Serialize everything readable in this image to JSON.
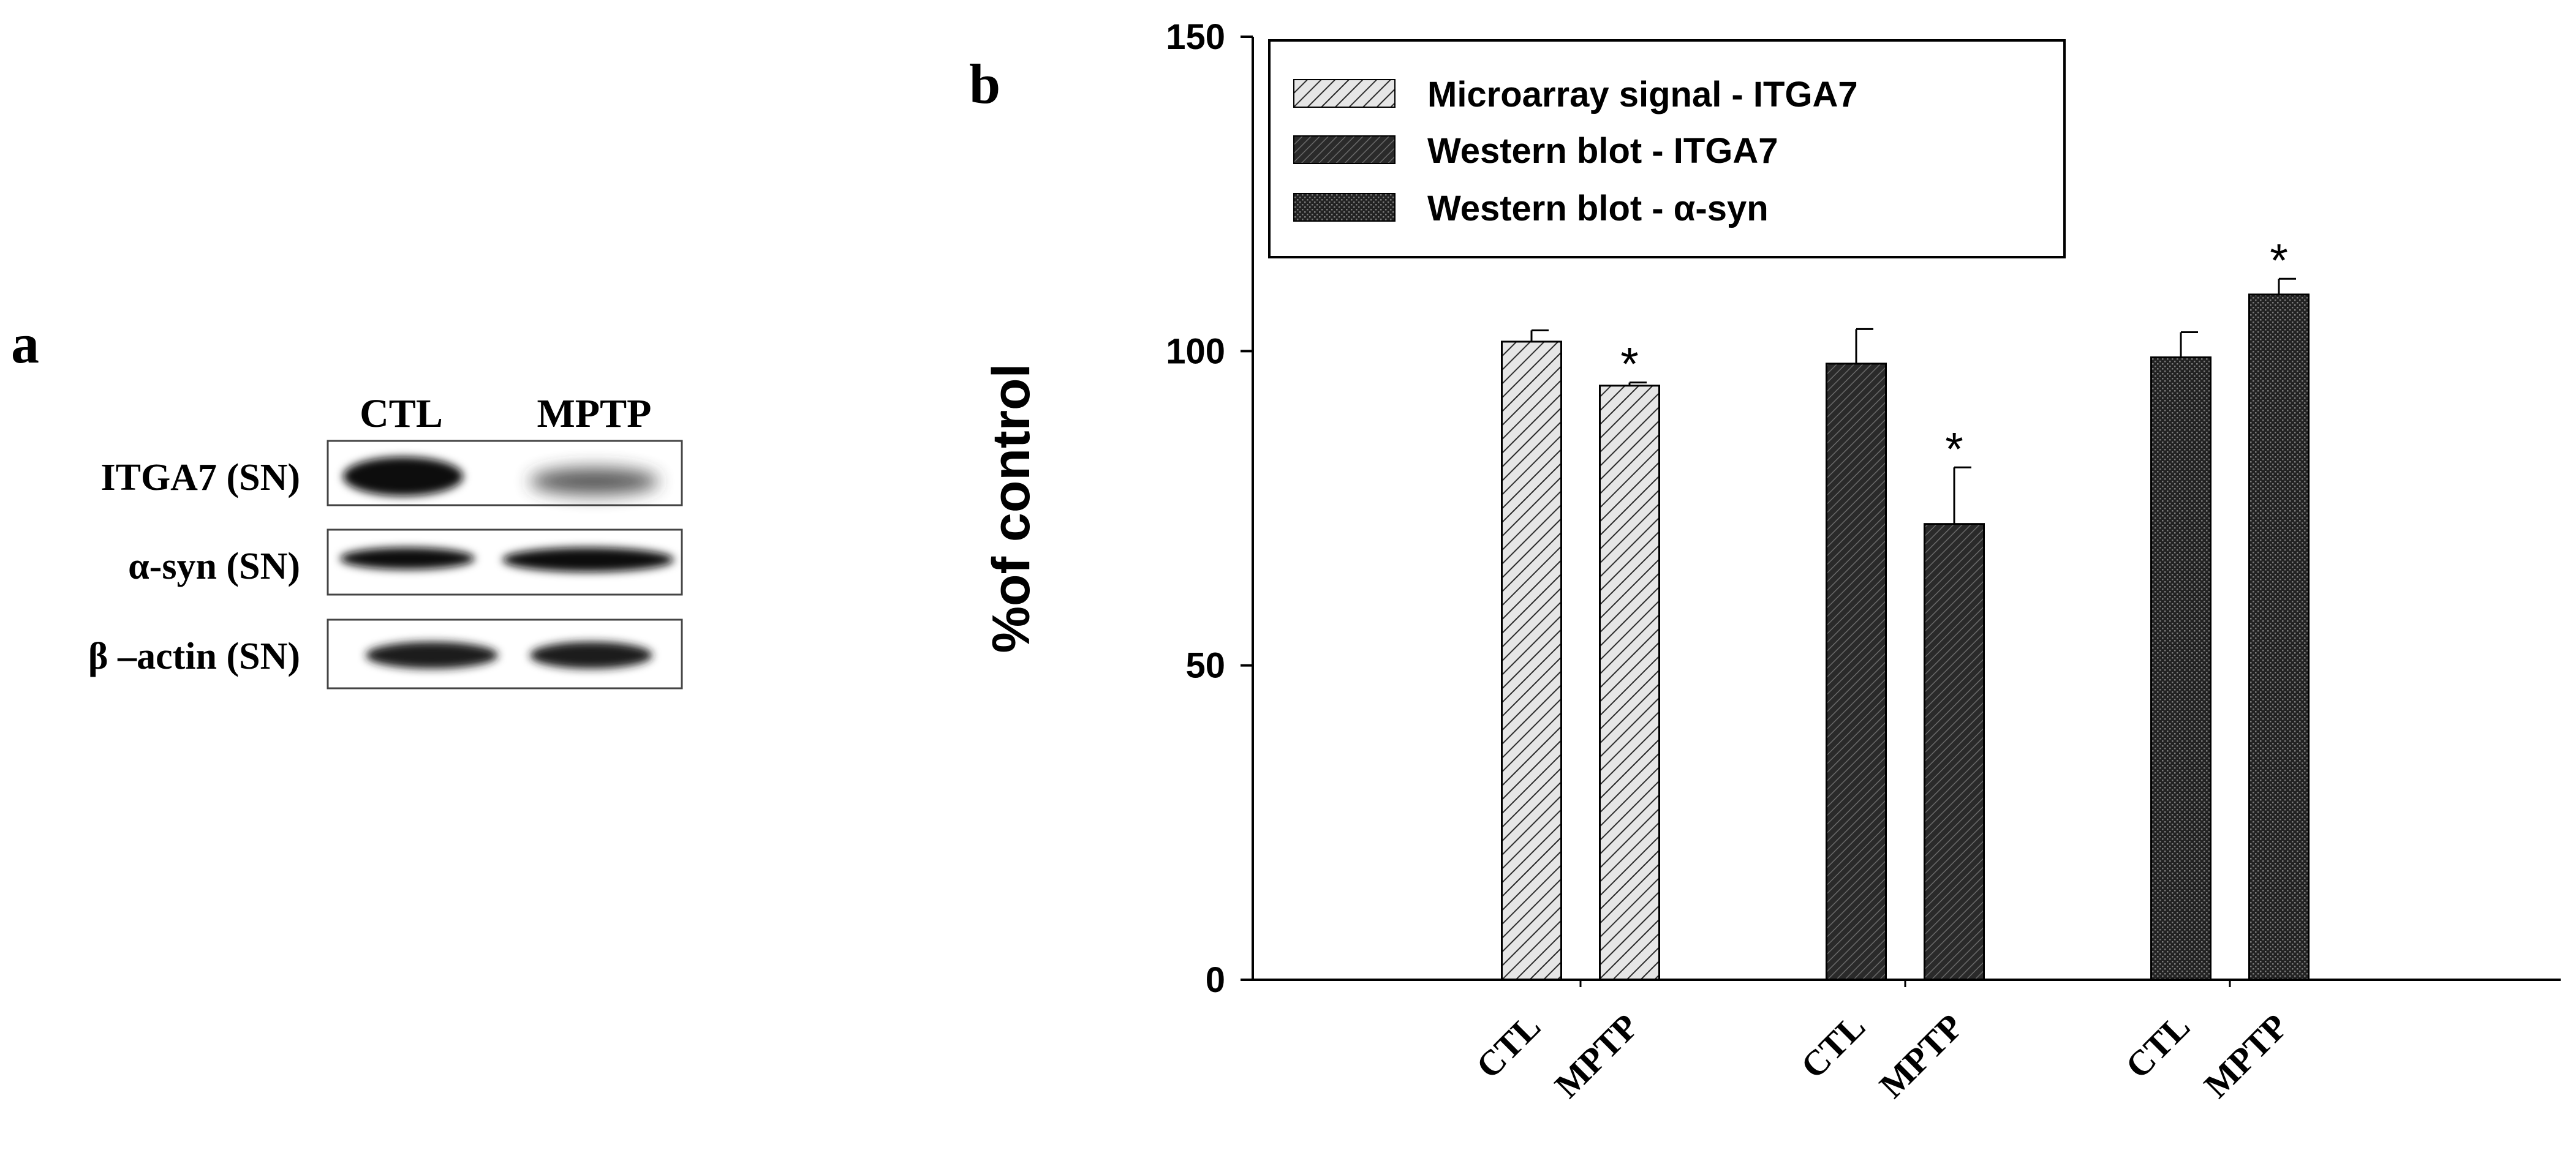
{
  "panel_a": {
    "letter": "a",
    "lanes": [
      "CTL",
      "MPTP"
    ],
    "rows": [
      {
        "label": "ITGA7 (SN)",
        "intensity": [
          0.95,
          0.55
        ]
      },
      {
        "label": "α-syn (SN)",
        "intensity": [
          0.85,
          0.95
        ]
      },
      {
        "label": "β –actin (SN)",
        "intensity": [
          0.8,
          0.8
        ]
      }
    ]
  },
  "panel_b": {
    "letter": "b"
  },
  "chart_data": {
    "type": "bar",
    "title": "",
    "xlabel": "",
    "ylabel": "%of control",
    "ylim": [
      0,
      150
    ],
    "yticks": [
      0,
      50,
      100,
      150
    ],
    "categories": [
      "CTL",
      "MPTP"
    ],
    "series": [
      {
        "name": "Microarray signal - ITGA7",
        "pattern": "diag-light",
        "values": [
          101.5,
          94.5
        ],
        "errors": [
          1.8,
          0.5
        ],
        "significant": [
          false,
          true
        ]
      },
      {
        "name": "Western blot - ITGA7",
        "pattern": "diag-dark",
        "values": [
          98,
          72.5
        ],
        "errors": [
          5.5,
          9
        ],
        "significant": [
          false,
          true
        ]
      },
      {
        "name": "Western blot - α-syn",
        "pattern": "dots-dark",
        "values": [
          99,
          109
        ],
        "errors": [
          4,
          2.5
        ],
        "significant": [
          false,
          true
        ]
      }
    ],
    "significance_marker": "*",
    "legend_position": "top-left",
    "colors": {
      "light_bar": "#d9d9d9",
      "dark_bar": "#3a3a3a",
      "axis": "#000000"
    }
  }
}
